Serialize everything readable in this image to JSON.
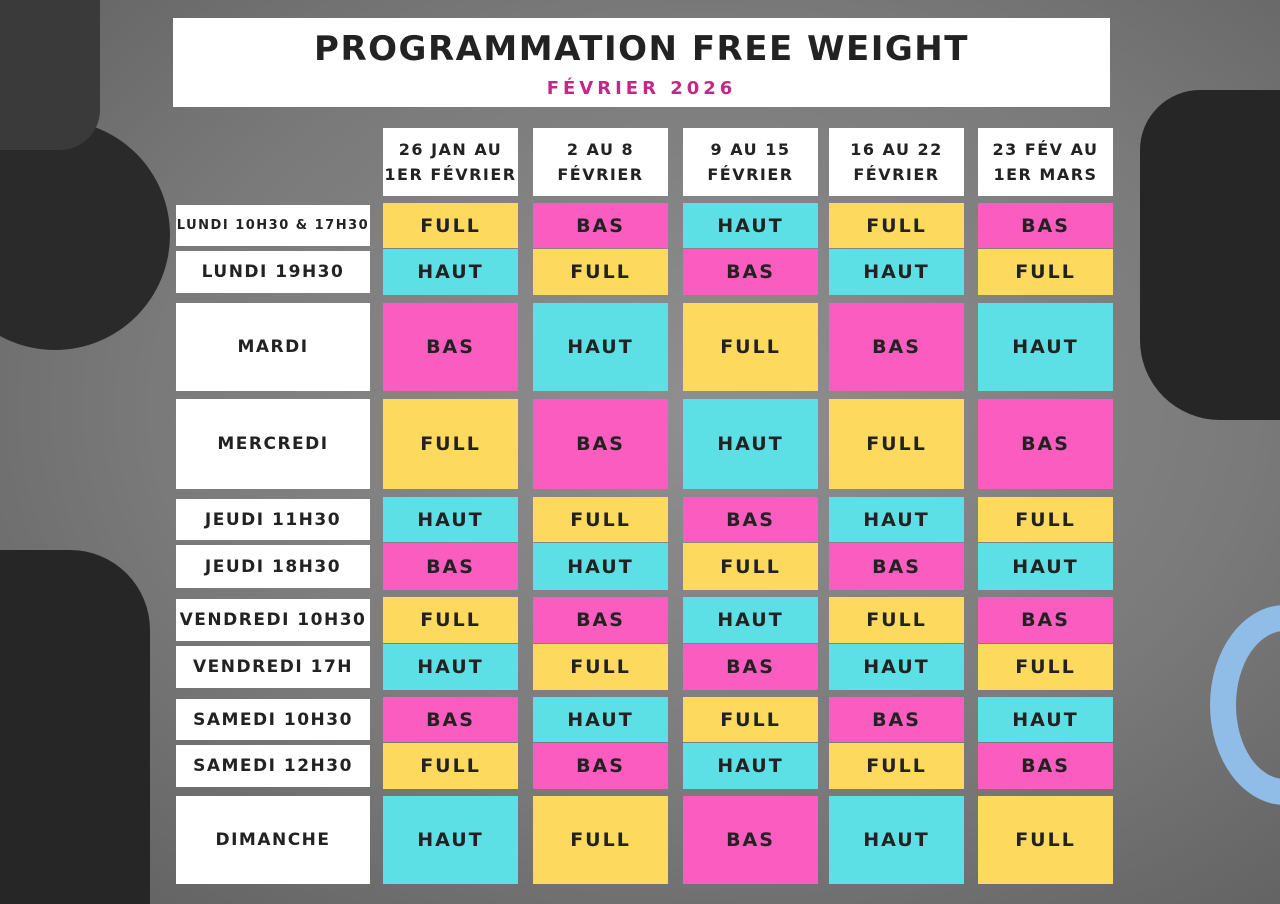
{
  "header": {
    "title": "PROGRAMMATION FREE WEIGHT",
    "subtitle": "FÉVRIER 2026"
  },
  "table": {
    "colors": {
      "FULL": "#fdd95e",
      "BAS": "#fb5cbf",
      "HAUT": "#5ce0e5"
    },
    "columns": [
      [
        "26 JAN AU",
        "1ER FÉVRIER"
      ],
      [
        "2 AU 8",
        "FÉVRIER"
      ],
      [
        "9 AU 15",
        "FÉVRIER"
      ],
      [
        "16 AU 22",
        "FÉVRIER"
      ],
      [
        "23 FÉV AU",
        "1ER MARS"
      ]
    ],
    "rows": [
      {
        "label": "LUNDI 10H30 & 17H30",
        "cells": [
          "FULL",
          "BAS",
          "HAUT",
          "FULL",
          "BAS"
        ]
      },
      {
        "label": "LUNDI 19H30",
        "cells": [
          "HAUT",
          "FULL",
          "BAS",
          "HAUT",
          "FULL"
        ]
      },
      {
        "label": "MARDI",
        "cells": [
          "BAS",
          "HAUT",
          "FULL",
          "BAS",
          "HAUT"
        ]
      },
      {
        "label": "MERCREDI",
        "cells": [
          "FULL",
          "BAS",
          "HAUT",
          "FULL",
          "BAS"
        ]
      },
      {
        "label": "JEUDI 11H30",
        "cells": [
          "HAUT",
          "FULL",
          "BAS",
          "HAUT",
          "FULL"
        ]
      },
      {
        "label": "JEUDI 18H30",
        "cells": [
          "BAS",
          "HAUT",
          "FULL",
          "BAS",
          "HAUT"
        ]
      },
      {
        "label": "VENDREDI 10H30",
        "cells": [
          "FULL",
          "BAS",
          "HAUT",
          "FULL",
          "BAS"
        ]
      },
      {
        "label": "VENDREDI 17H",
        "cells": [
          "HAUT",
          "FULL",
          "BAS",
          "HAUT",
          "FULL"
        ]
      },
      {
        "label": "SAMEDI 10H30",
        "cells": [
          "BAS",
          "HAUT",
          "FULL",
          "BAS",
          "HAUT"
        ]
      },
      {
        "label": "SAMEDI 12H30",
        "cells": [
          "FULL",
          "BAS",
          "HAUT",
          "FULL",
          "BAS"
        ]
      },
      {
        "label": "DIMANCHE",
        "cells": [
          "HAUT",
          "FULL",
          "BAS",
          "HAUT",
          "FULL"
        ]
      }
    ]
  }
}
